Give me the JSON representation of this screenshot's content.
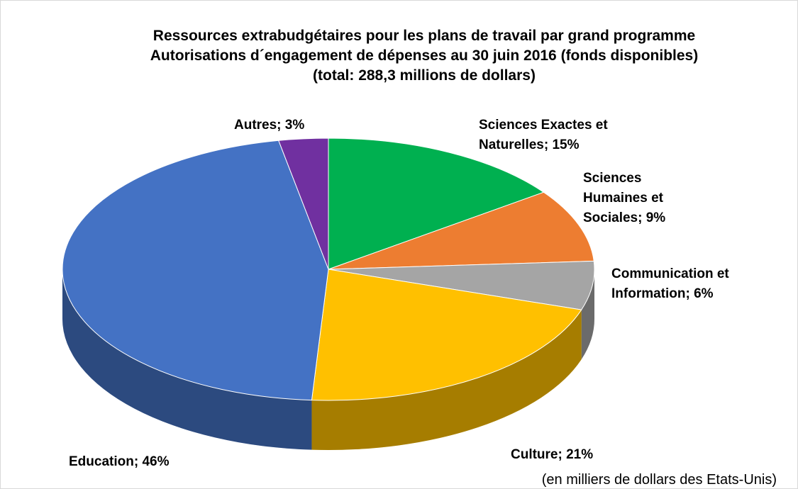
{
  "chart_data": {
    "type": "pie",
    "title": [
      "Ressources extrabudgétaires pour les plans de travail par grand programme",
      "Autorisations d´engagement de dépenses au 30 juin 2016 (fonds disponibles)",
      "(total: 288,3 millions de dollars)"
    ],
    "note": "(en milliers de dollars des Etats-Unis)",
    "categories": [
      "Sciences Exactes et Naturelles; 15%",
      "Sciences Humaines et Sociales; 9%",
      "Communication et Information; 6%",
      "Culture; 21%",
      "Education; 46%",
      "Autres; 3%"
    ],
    "values": [
      15,
      9,
      6,
      21,
      46,
      3
    ],
    "colors": [
      "#00b050",
      "#ed7d31",
      "#a5a5a5",
      "#ffc000",
      "#4472c4",
      "#7030a0"
    ]
  }
}
